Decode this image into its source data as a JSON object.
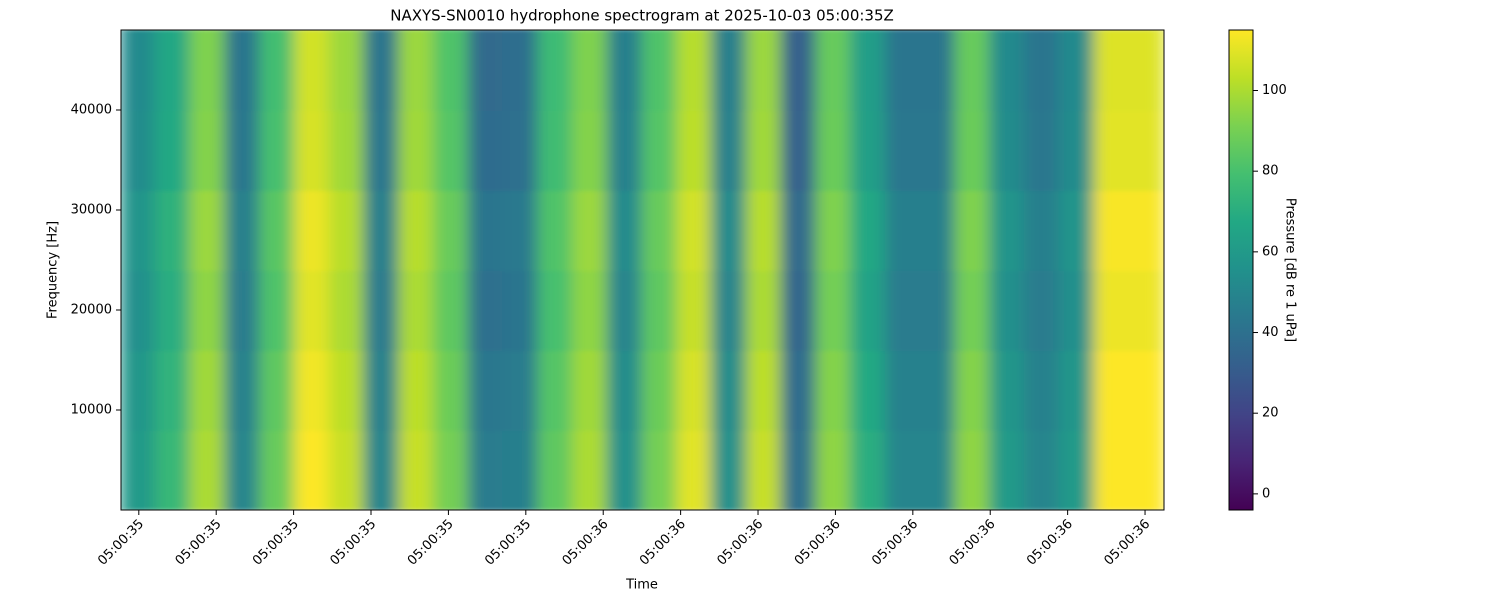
{
  "chart_data": {
    "type": "heatmap",
    "title": "NAXYS-SN0010 hydrophone spectrogram at 2025-10-03 05:00:35Z",
    "x_label": "Time",
    "y_label": "Frequency [Hz]",
    "colorbar_label": "Pressure [dB re 1 uPa]",
    "colormap": "viridis",
    "xlim": [
      35.377,
      36.7245
    ],
    "xticks": [
      {
        "value": 35.4,
        "label": "05:00:35"
      },
      {
        "value": 35.5,
        "label": "05:00:35"
      },
      {
        "value": 35.6,
        "label": "05:00:35"
      },
      {
        "value": 35.7,
        "label": "05:00:35"
      },
      {
        "value": 35.8,
        "label": "05:00:35"
      },
      {
        "value": 35.9,
        "label": "05:00:35"
      },
      {
        "value": 36.0,
        "label": "05:00:36"
      },
      {
        "value": 36.1,
        "label": "05:00:36"
      },
      {
        "value": 36.2,
        "label": "05:00:36"
      },
      {
        "value": 36.3,
        "label": "05:00:36"
      },
      {
        "value": 36.4,
        "label": "05:00:36"
      },
      {
        "value": 36.5,
        "label": "05:00:36"
      },
      {
        "value": 36.6,
        "label": "05:00:36"
      },
      {
        "value": 36.7,
        "label": "05:00:36"
      }
    ],
    "ylim": [
      0,
      48000
    ],
    "yticks": [
      10000,
      20000,
      30000,
      40000
    ],
    "clim": [
      -4,
      115
    ],
    "cticks": [
      0,
      20,
      40,
      60,
      80,
      100
    ],
    "z": [
      [
        60,
        75,
        100,
        50,
        87,
        115,
        105,
        50,
        105,
        90,
        45,
        47,
        85,
        100,
        55,
        90,
        110,
        55,
        105,
        40,
        95,
        70,
        50,
        50,
        95,
        60,
        50,
        60,
        115,
        115
      ],
      [
        58,
        73,
        98,
        48,
        85,
        113,
        103,
        48,
        103,
        88,
        43,
        45,
        83,
        98,
        53,
        88,
        108,
        53,
        103,
        38,
        93,
        68,
        48,
        48,
        93,
        58,
        48,
        58,
        115,
        115
      ],
      [
        55,
        70,
        95,
        45,
        82,
        110,
        100,
        45,
        100,
        85,
        40,
        42,
        80,
        95,
        50,
        85,
        105,
        50,
        100,
        35,
        90,
        65,
        45,
        45,
        90,
        55,
        45,
        55,
        112,
        112
      ],
      [
        57,
        72,
        97,
        47,
        84,
        112,
        102,
        47,
        102,
        87,
        42,
        44,
        82,
        97,
        52,
        87,
        107,
        52,
        102,
        37,
        92,
        67,
        47,
        47,
        92,
        57,
        47,
        57,
        114,
        114
      ],
      [
        53,
        68,
        93,
        43,
        80,
        108,
        98,
        43,
        98,
        83,
        38,
        40,
        78,
        93,
        48,
        83,
        103,
        48,
        98,
        33,
        88,
        63,
        43,
        43,
        88,
        53,
        43,
        53,
        110,
        110
      ],
      [
        52,
        67,
        92,
        42,
        79,
        107,
        97,
        42,
        97,
        82,
        37,
        39,
        77,
        92,
        47,
        82,
        102,
        47,
        97,
        32,
        87,
        62,
        42,
        42,
        87,
        52,
        42,
        52,
        109,
        109
      ]
    ]
  }
}
